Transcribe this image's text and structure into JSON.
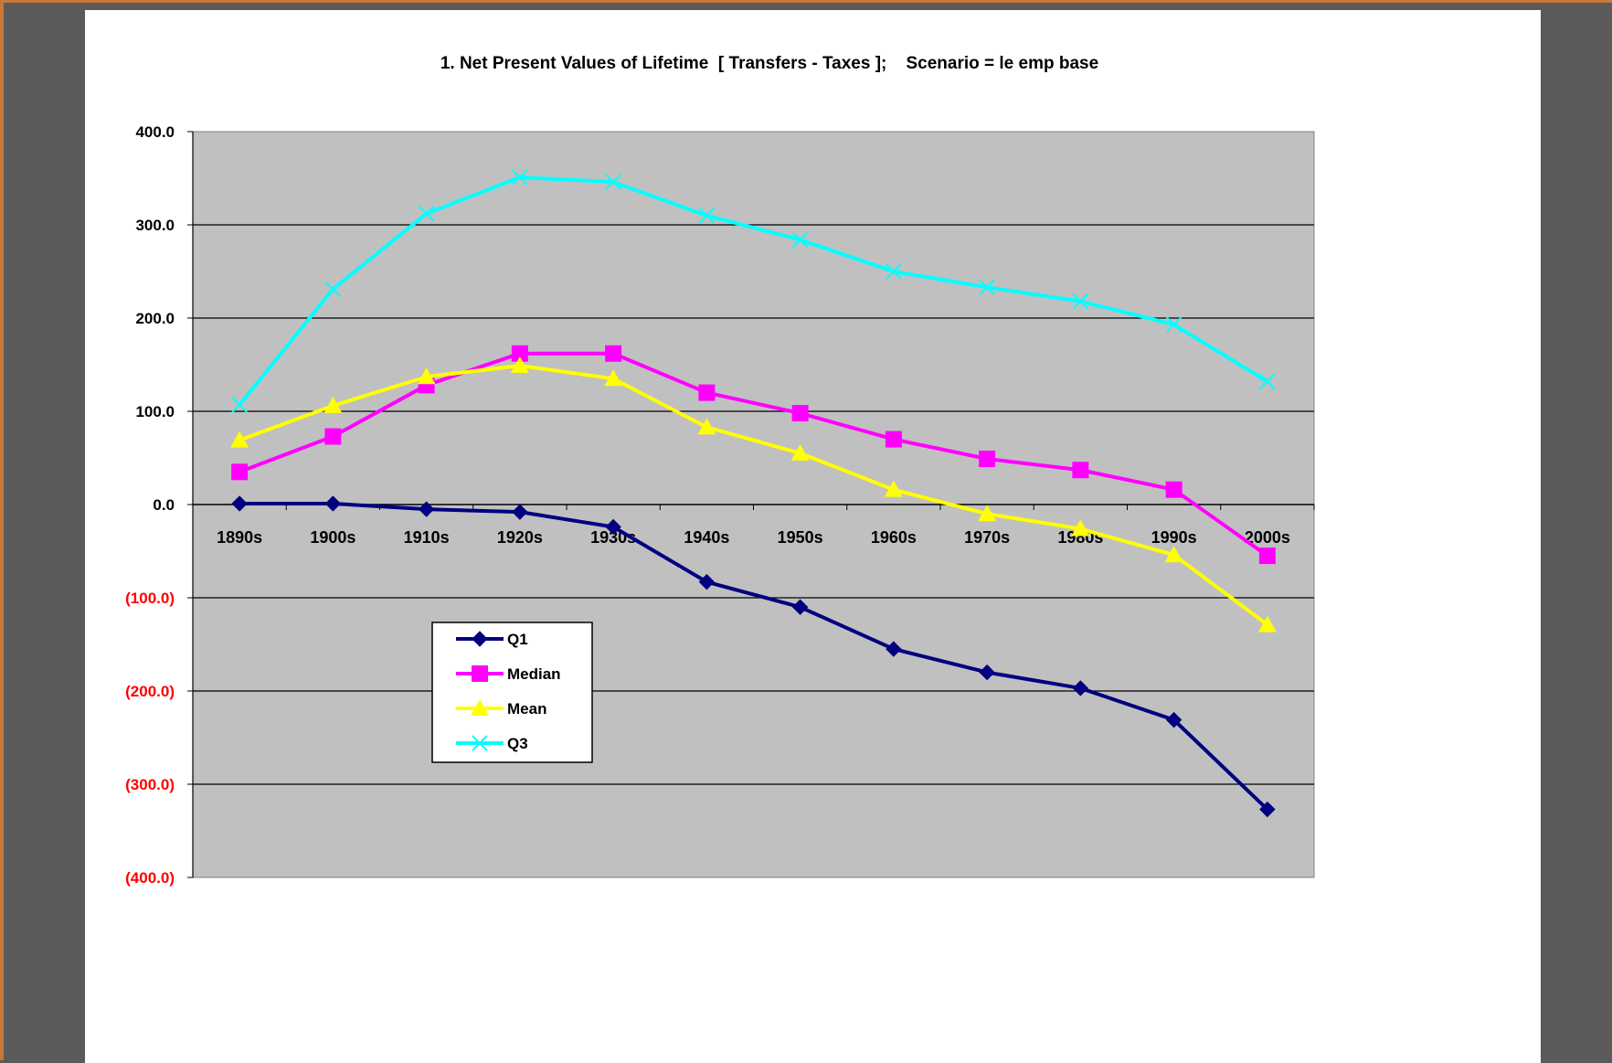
{
  "chart_data": {
    "type": "line",
    "title": "1. Net Present Values of Lifetime  [ Transfers - Taxes ];    Scenario = le emp base",
    "xlabel": "",
    "ylabel": "",
    "categories": [
      "1890s",
      "1900s",
      "1910s",
      "1920s",
      "1930s",
      "1940s",
      "1950s",
      "1960s",
      "1970s",
      "1980s",
      "1990s",
      "2000s"
    ],
    "ylim": [
      -400,
      400
    ],
    "yticks": [
      400,
      300,
      200,
      100,
      0,
      -100,
      -200,
      -300,
      -400
    ],
    "ytick_labels": [
      "400.0",
      "300.0",
      "200.0",
      "100.0",
      "0.0",
      "(100.0)",
      "(200.0)",
      "(300.0)",
      "(400.0)"
    ],
    "negative_label_color": "#ff0000",
    "plot_background": "#c0c0c0",
    "grid": true,
    "legend_position": "lower-left",
    "series": [
      {
        "name": "Q1",
        "color": "#000080",
        "marker": "diamond",
        "values": [
          1,
          1,
          -5,
          -8,
          -24,
          -83,
          -110,
          -155,
          -180,
          -197,
          -231,
          -327
        ]
      },
      {
        "name": "Median",
        "color": "#ff00ff",
        "marker": "square",
        "values": [
          35,
          73,
          128,
          162,
          162,
          120,
          98,
          70,
          49,
          37,
          16,
          -55
        ]
      },
      {
        "name": "Mean",
        "color": "#ffff00",
        "marker": "triangle",
        "values": [
          69,
          106,
          137,
          149,
          135,
          83,
          55,
          16,
          -10,
          -26,
          -54,
          -129
        ]
      },
      {
        "name": "Q3",
        "color": "#00ffff",
        "marker": "x",
        "values": [
          107,
          231,
          312,
          351,
          346,
          310,
          284,
          250,
          233,
          218,
          193,
          132
        ]
      }
    ]
  }
}
